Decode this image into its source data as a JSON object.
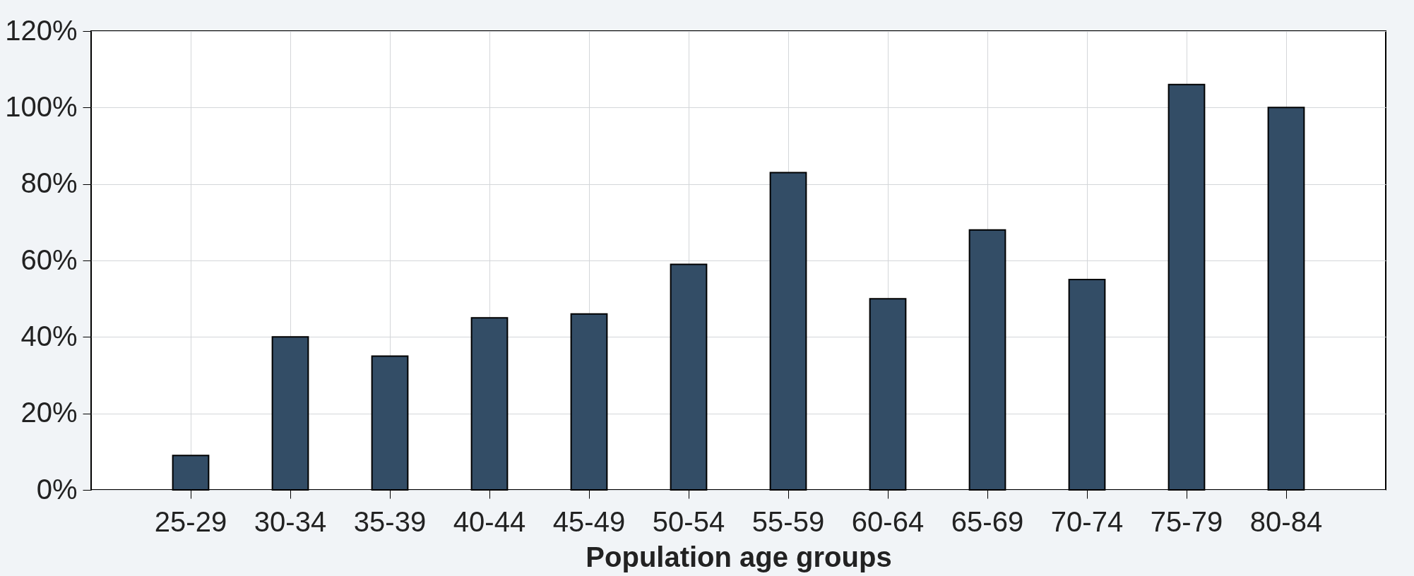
{
  "chart_data": {
    "type": "bar",
    "xlabel": "Population age groups",
    "categories": [
      "25-29",
      "30-34",
      "35-39",
      "40-44",
      "45-49",
      "50-54",
      "55-59",
      "60-64",
      "65-69",
      "70-74",
      "75-79",
      "80-84"
    ],
    "values": [
      9,
      40,
      35,
      45,
      46,
      59,
      83,
      50,
      68,
      55,
      106,
      100
    ],
    "color": "#334d66",
    "ylim": [
      0,
      120
    ],
    "yticks": [
      {
        "value": 0,
        "label": "0%"
      },
      {
        "value": 20,
        "label": "20%"
      },
      {
        "value": 40,
        "label": "40%"
      },
      {
        "value": 60,
        "label": "60%"
      },
      {
        "value": 80,
        "label": "80%"
      },
      {
        "value": 100,
        "label": "100%"
      },
      {
        "value": 120,
        "label": "120%"
      }
    ],
    "grid": true
  }
}
